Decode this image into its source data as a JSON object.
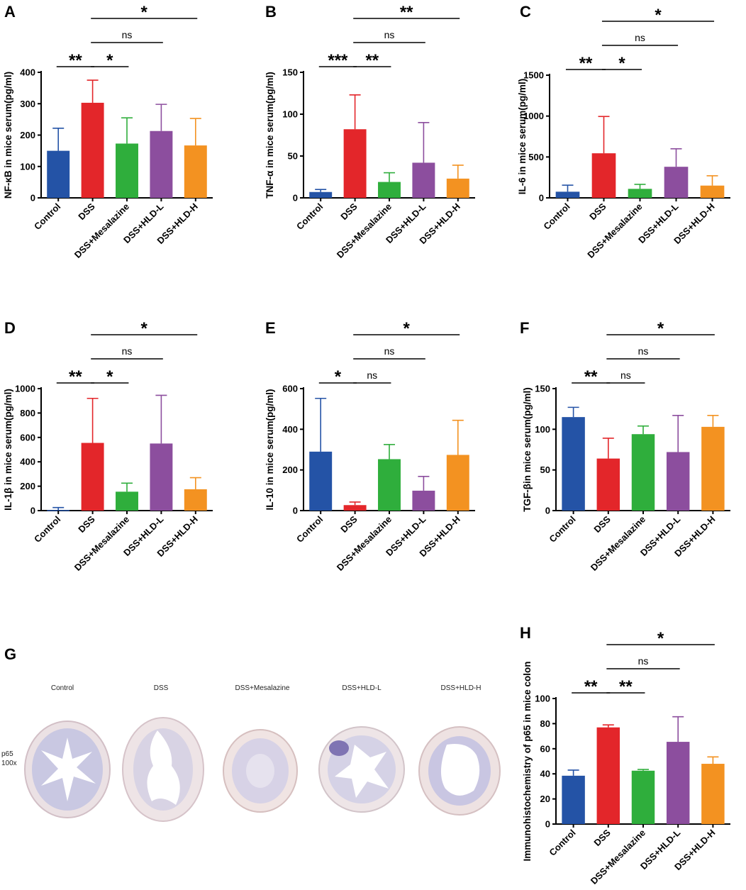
{
  "figure": {
    "histology": {
      "letter": "G",
      "labels": [
        "Control",
        "DSS",
        "DSS+Mesalazine",
        "DSS+HLD-L",
        "DSS+HLD-H"
      ],
      "stain": "p65",
      "magnification": "100x"
    }
  },
  "group_colors": [
    "#2453a6",
    "#e3262a",
    "#2fae3c",
    "#8c4e9e",
    "#f39221"
  ],
  "chart_data": [
    {
      "letter": "A",
      "type": "bar",
      "categories": [
        "Control",
        "DSS",
        "DSS+Mesalazine",
        "DSS+HLD-L",
        "DSS+HLD-H"
      ],
      "values": [
        150,
        303,
        173,
        213,
        167
      ],
      "errors": [
        72,
        72,
        82,
        85,
        86
      ],
      "ylabel": "NF-κB in mice serum(pg/ml)",
      "ylim": [
        0,
        400
      ],
      "yticks": [
        0,
        100,
        200,
        300,
        400
      ],
      "significance": [
        {
          "from": 0,
          "to": 1,
          "label": "**"
        },
        {
          "from": 1,
          "to": 2,
          "label": "*"
        },
        {
          "from": 1,
          "to": 3,
          "label": "ns"
        },
        {
          "from": 1,
          "to": 4,
          "label": "*"
        }
      ]
    },
    {
      "letter": "B",
      "type": "bar",
      "categories": [
        "Control",
        "DSS",
        "DSS+Mesalazine",
        "DSS+HLD-L",
        "DSS+HLD-H"
      ],
      "values": [
        7,
        82,
        19,
        42,
        23
      ],
      "errors": [
        3,
        41,
        11,
        48,
        16
      ],
      "ylabel": "TNF-α in mice serum(pg/ml)",
      "ylim": [
        0,
        150
      ],
      "yticks": [
        0,
        50,
        100,
        150
      ],
      "significance": [
        {
          "from": 0,
          "to": 1,
          "label": "***"
        },
        {
          "from": 1,
          "to": 2,
          "label": "**"
        },
        {
          "from": 1,
          "to": 3,
          "label": "ns"
        },
        {
          "from": 1,
          "to": 4,
          "label": "**"
        }
      ]
    },
    {
      "letter": "C",
      "type": "bar",
      "categories": [
        "Control",
        "DSS",
        "DSS+Mesalazine",
        "DSS+HLD-L",
        "DSS+HLD-H"
      ],
      "values": [
        75,
        545,
        110,
        380,
        150
      ],
      "errors": [
        80,
        450,
        55,
        220,
        120
      ],
      "ylabel": "IL-6 in mice serum(pg/ml)",
      "ylim": [
        0,
        1500
      ],
      "yticks": [
        0,
        500,
        1000,
        1500
      ],
      "significance": [
        {
          "from": 0,
          "to": 1,
          "label": "**"
        },
        {
          "from": 1,
          "to": 2,
          "label": "*"
        },
        {
          "from": 1,
          "to": 3,
          "label": "ns"
        },
        {
          "from": 1,
          "to": 4,
          "label": "*"
        }
      ]
    },
    {
      "letter": "D",
      "type": "bar",
      "categories": [
        "Control",
        "DSS",
        "DSS+Mesalazine",
        "DSS+HLD-L",
        "DSS+HLD-H"
      ],
      "values": [
        5,
        555,
        155,
        550,
        175
      ],
      "errors": [
        20,
        365,
        70,
        395,
        95
      ],
      "ylabel": "IL-1β in mice serum(pg/ml)",
      "ylim": [
        0,
        1000
      ],
      "yticks": [
        0,
        200,
        400,
        600,
        800,
        1000
      ],
      "significance": [
        {
          "from": 0,
          "to": 1,
          "label": "**"
        },
        {
          "from": 1,
          "to": 2,
          "label": "*"
        },
        {
          "from": 1,
          "to": 3,
          "label": "ns"
        },
        {
          "from": 1,
          "to": 4,
          "label": "*"
        }
      ]
    },
    {
      "letter": "E",
      "type": "bar",
      "categories": [
        "Control",
        "DSS",
        "DSS+Mesalazine",
        "DSS+HLD-L",
        "DSS+HLD-H"
      ],
      "values": [
        290,
        27,
        253,
        98,
        274
      ],
      "errors": [
        262,
        15,
        72,
        70,
        170
      ],
      "ylabel": "IL-10 in mice serum(pg/ml)",
      "ylim": [
        0,
        600
      ],
      "yticks": [
        0,
        200,
        400,
        600
      ],
      "significance": [
        {
          "from": 0,
          "to": 1,
          "label": "*"
        },
        {
          "from": 1,
          "to": 2,
          "label": "ns"
        },
        {
          "from": 1,
          "to": 3,
          "label": "ns"
        },
        {
          "from": 1,
          "to": 4,
          "label": "*"
        }
      ]
    },
    {
      "letter": "F",
      "type": "bar",
      "categories": [
        "Control",
        "DSS",
        "DSS+Mesalazine",
        "DSS+HLD-L",
        "DSS+HLD-H"
      ],
      "values": [
        115,
        64,
        94,
        72,
        103
      ],
      "errors": [
        12,
        25,
        10,
        45,
        14
      ],
      "ylabel": "TGF-βin mice serum(pg/ml)",
      "ylim": [
        0,
        150
      ],
      "yticks": [
        0,
        50,
        100,
        150
      ],
      "significance": [
        {
          "from": 0,
          "to": 1,
          "label": "**"
        },
        {
          "from": 1,
          "to": 2,
          "label": "ns"
        },
        {
          "from": 1,
          "to": 3,
          "label": "ns"
        },
        {
          "from": 1,
          "to": 4,
          "label": "*"
        }
      ]
    },
    {
      "letter": "H",
      "type": "bar",
      "categories": [
        "Control",
        "DSS",
        "DSS+Mesalazine",
        "DSS+HLD-L",
        "DSS+HLD-H"
      ],
      "values": [
        38.5,
        77,
        42.5,
        65.5,
        48
      ],
      "errors": [
        4.5,
        2,
        1,
        20,
        5.5
      ],
      "ylabel": "Immunohistochemistry of p65 in mice colon",
      "ylim": [
        0,
        100
      ],
      "yticks": [
        0,
        20,
        40,
        60,
        80,
        100
      ],
      "significance": [
        {
          "from": 0,
          "to": 1,
          "label": "**"
        },
        {
          "from": 1,
          "to": 2,
          "label": "**"
        },
        {
          "from": 1,
          "to": 3,
          "label": "ns"
        },
        {
          "from": 1,
          "to": 4,
          "label": "*"
        }
      ]
    }
  ]
}
